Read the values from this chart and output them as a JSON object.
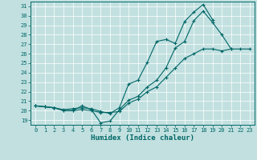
{
  "xlabel": "Humidex (Indice chaleur)",
  "xlim": [
    -0.5,
    23.5
  ],
  "ylim": [
    18.5,
    31.5
  ],
  "yticks": [
    19,
    20,
    21,
    22,
    23,
    24,
    25,
    26,
    27,
    28,
    29,
    30,
    31
  ],
  "xticks": [
    0,
    1,
    2,
    3,
    4,
    5,
    6,
    7,
    8,
    9,
    10,
    11,
    12,
    13,
    14,
    15,
    16,
    17,
    18,
    19,
    20,
    21,
    22,
    23
  ],
  "bg_color": "#c2e0e0",
  "line_color": "#006666",
  "grid_color": "#ffffff",
  "line1_y": [
    20.5,
    20.4,
    20.3,
    20.0,
    20.0,
    20.5,
    20.1,
    18.7,
    18.9,
    20.1,
    21.1,
    21.5,
    22.5,
    23.2,
    24.5,
    26.6,
    27.3,
    29.5,
    30.5,
    29.3,
    28.0,
    26.5,
    null,
    null
  ],
  "line2_y": [
    20.5,
    20.4,
    20.3,
    20.1,
    20.2,
    20.3,
    20.2,
    19.9,
    19.7,
    20.3,
    22.8,
    23.2,
    25.1,
    27.3,
    27.5,
    27.1,
    29.4,
    30.4,
    31.2,
    29.6,
    null,
    null,
    null,
    null
  ],
  "line3_y": [
    20.5,
    20.4,
    20.3,
    20.0,
    20.0,
    20.1,
    20.0,
    19.8,
    19.8,
    19.9,
    20.8,
    21.2,
    22.0,
    22.5,
    23.5,
    24.5,
    25.5,
    26.0,
    26.5,
    26.5,
    26.3,
    26.5,
    26.5,
    26.5
  ]
}
